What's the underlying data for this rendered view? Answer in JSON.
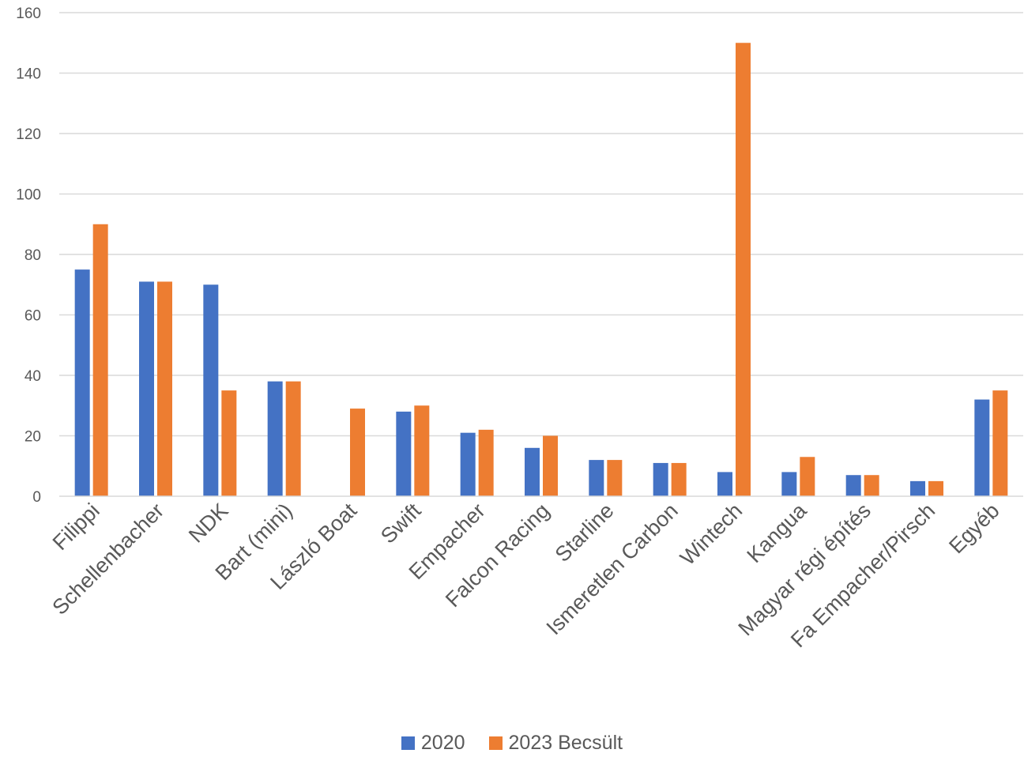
{
  "chart_data": {
    "type": "bar",
    "categories": [
      "Filippi",
      "Schellenbacher",
      "NDK",
      "Bart (mini)",
      "László Boat",
      "Swift",
      "Empacher",
      "Falcon Racing",
      "Starline",
      "Ismeretlen Carbon",
      "Wintech",
      "Kangua",
      "Magyar régi építés",
      "Fa Empacher/Pirsch",
      "Egyéb"
    ],
    "series": [
      {
        "name": "2020",
        "color": "#4472C4",
        "values": [
          75,
          71,
          70,
          38,
          0,
          28,
          21,
          16,
          12,
          11,
          8,
          8,
          7,
          5,
          32
        ]
      },
      {
        "name": "2023 Becsült",
        "color": "#ED7D31",
        "values": [
          90,
          71,
          35,
          38,
          29,
          30,
          22,
          20,
          12,
          11,
          150,
          13,
          7,
          5,
          35
        ]
      }
    ],
    "yticks": [
      0,
      20,
      40,
      60,
      80,
      100,
      120,
      140,
      160
    ],
    "ylim": [
      0,
      160
    ],
    "grid": true,
    "legend_position": "bottom"
  }
}
